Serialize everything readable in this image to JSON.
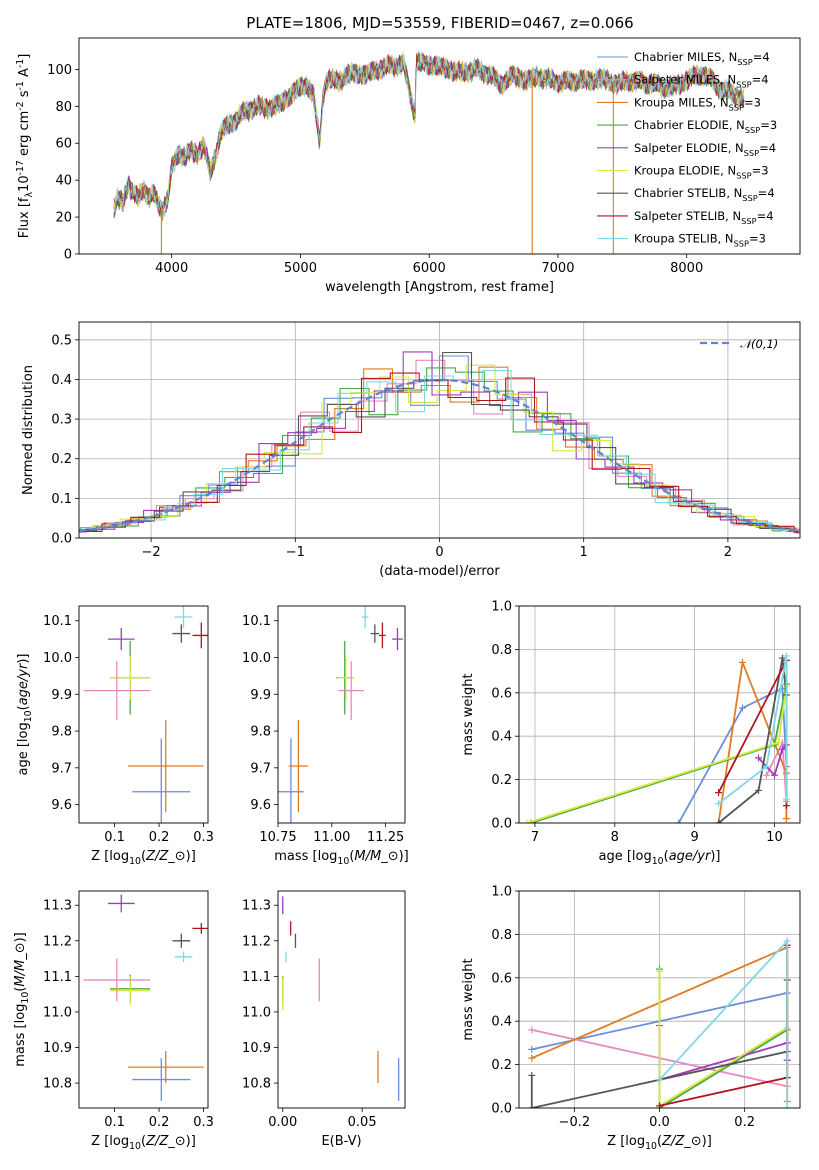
{
  "title": "PLATE=1806, MJD=53559, FIBERID=0467, z=0.066",
  "legend_top": [
    {
      "name": "Chabrier MILES, N$_{SSP}$=4",
      "color": "#6a8fd8"
    },
    {
      "name": "Salpeter MILES, N$_{SSP}$=4",
      "color": "#e78ac3"
    },
    {
      "name": "Kroupa MILES, N$_{SSP}$=3",
      "color": "#e07b22"
    },
    {
      "name": "Chabrier ELODIE, N$_{SSP}$=3",
      "color": "#4aa845"
    },
    {
      "name": "Salpeter ELODIE, N$_{SSP}$=4",
      "color": "#a23bbd"
    },
    {
      "name": "Kroupa ELODIE, N$_{SSP}$=3",
      "color": "#d8e840"
    },
    {
      "name": "Chabrier STELIB, N$_{SSP}$=4",
      "color": "#555555"
    },
    {
      "name": "Salpeter STELIB, N$_{SSP}$=4",
      "color": "#b0161e"
    },
    {
      "name": "Kroupa STELIB, N$_{SSP}$=3",
      "color": "#7fd8e6"
    }
  ],
  "legend_hist": "𝒩(0,1)",
  "chart_data": [
    {
      "type": "line",
      "id": "spectrum",
      "xlabel": "wavelength [Angstrom, rest frame]",
      "ylabel": "Flux [f$_λ$10$^{-17}$ erg cm$^{-2}$ s$^{-1}$ A$^{-1}$]",
      "xlim": [
        3280,
        8880
      ],
      "ylim": [
        0,
        117
      ],
      "xticks": [
        4000,
        5000,
        6000,
        7000,
        8000
      ],
      "yticks": [
        0,
        20,
        40,
        60,
        80,
        100
      ],
      "spectrum_x": [
        3550,
        3580,
        3620,
        3660,
        3700,
        3740,
        3780,
        3820,
        3860,
        3900,
        3930,
        3970,
        4000,
        4050,
        4100,
        4150,
        4200,
        4250,
        4300,
        4340,
        4380,
        4450,
        4550,
        4650,
        4750,
        4860,
        4950,
        5050,
        5100,
        5150,
        5175,
        5200,
        5300,
        5400,
        5500,
        5600,
        5700,
        5800,
        5890,
        5900,
        5950,
        6050,
        6150,
        6250,
        6350,
        6450,
        6563,
        6650,
        6750,
        6850,
        6950,
        7050,
        7150,
        7250,
        7350,
        7450,
        7550,
        7650,
        7750,
        7850,
        7950,
        8050,
        8150,
        8250,
        8350,
        8450
      ],
      "spectrum_y": [
        24,
        30,
        28,
        38,
        33,
        30,
        36,
        31,
        32,
        27,
        24,
        30,
        46,
        55,
        52,
        56,
        54,
        59,
        44,
        53,
        66,
        70,
        76,
        80,
        79,
        82,
        88,
        92,
        86,
        60,
        86,
        94,
        94,
        98,
        97,
        100,
        102,
        103,
        75,
        104,
        103,
        102,
        100,
        98,
        100,
        98,
        92,
        97,
        94,
        96,
        94,
        93,
        94,
        94,
        95,
        92,
        94,
        93,
        92,
        90,
        92,
        96,
        97,
        90,
        87,
        84
      ],
      "drops": [
        {
          "x": 3920,
          "color": "#e07b22"
        },
        {
          "x": 6800,
          "color": "#e07b22"
        },
        {
          "x": 7430,
          "color": "#e07b22"
        }
      ]
    },
    {
      "type": "histogram",
      "id": "residuals",
      "xlabel": "(data-model)/error",
      "ylabel": "Normed distribution",
      "xlim": [
        -2.5,
        2.5
      ],
      "ylim": [
        0,
        0.545
      ],
      "xticks": [
        -2,
        -1,
        0,
        1,
        2
      ],
      "yticks": [
        0.0,
        0.1,
        0.2,
        0.3,
        0.4,
        0.5
      ],
      "bin_width": 0.2,
      "gaussian": {
        "mean": 0,
        "sigma": 1
      }
    },
    {
      "type": "scatter",
      "id": "age-vs-Z",
      "xlabel": "Z [log$_{10}$($Z/Z_⊙$)]",
      "ylabel": "age  [log$_{10}$($age/yr$)]",
      "xlim": [
        0.02,
        0.31
      ],
      "ylim": [
        9.55,
        10.14
      ],
      "xticks": [
        0.1,
        0.2,
        0.3
      ],
      "yticks": [
        9.6,
        9.7,
        9.8,
        9.9,
        10.0,
        10.1
      ],
      "points": [
        {
          "x": 0.205,
          "y": 9.635,
          "xerr": 0.065,
          "yerr": 0.145,
          "s": 0
        },
        {
          "x": 0.215,
          "y": 9.705,
          "xerr": 0.085,
          "yerr": 0.125,
          "s": 2
        },
        {
          "x": 0.135,
          "y": 9.945,
          "xerr": 0.045,
          "yerr": 0.1,
          "s": 3
        },
        {
          "x": 0.135,
          "y": 9.945,
          "xerr": 0.045,
          "yerr": 0.06,
          "s": 5
        },
        {
          "x": 0.115,
          "y": 10.05,
          "xerr": 0.03,
          "yerr": 0.03,
          "s": 4
        },
        {
          "x": 0.255,
          "y": 10.11,
          "xerr": 0.02,
          "yerr": 0.03,
          "s": 8
        },
        {
          "x": 0.25,
          "y": 10.065,
          "xerr": 0.02,
          "yerr": 0.025,
          "s": 6
        },
        {
          "x": 0.295,
          "y": 10.06,
          "xerr": 0.02,
          "yerr": 0.035,
          "s": 7
        },
        {
          "x": 0.105,
          "y": 9.91,
          "xerr": 0.075,
          "yerr": 0.08,
          "s": 1
        }
      ]
    },
    {
      "type": "scatter",
      "id": "age-vs-mass",
      "xlabel": "mass [log$_{10}$($M/M_⊙$)]",
      "xlim": [
        10.75,
        11.34
      ],
      "ylim": [
        9.55,
        10.14
      ],
      "xticks": [
        10.75,
        11.0,
        11.25
      ],
      "xticklabels": [
        "10.75",
        "11.00",
        "11.25"
      ],
      "yticks": [
        9.6,
        9.7,
        9.8,
        9.9,
        10.0,
        10.1
      ],
      "points": [
        {
          "x": 10.81,
          "y": 9.635,
          "xerr": 0.06,
          "yerr": 0.145,
          "s": 0
        },
        {
          "x": 10.845,
          "y": 9.705,
          "xerr": 0.045,
          "yerr": 0.125,
          "s": 2
        },
        {
          "x": 11.06,
          "y": 9.945,
          "xerr": 0.04,
          "yerr": 0.1,
          "s": 3
        },
        {
          "x": 11.065,
          "y": 9.945,
          "xerr": 0.04,
          "yerr": 0.06,
          "s": 5
        },
        {
          "x": 11.305,
          "y": 10.05,
          "xerr": 0.025,
          "yerr": 0.03,
          "s": 4
        },
        {
          "x": 11.155,
          "y": 10.11,
          "xerr": 0.015,
          "yerr": 0.03,
          "s": 8
        },
        {
          "x": 11.2,
          "y": 10.065,
          "xerr": 0.02,
          "yerr": 0.025,
          "s": 6
        },
        {
          "x": 11.235,
          "y": 10.06,
          "xerr": 0.015,
          "yerr": 0.035,
          "s": 7
        },
        {
          "x": 11.09,
          "y": 9.91,
          "xerr": 0.06,
          "yerr": 0.08,
          "s": 1
        }
      ]
    },
    {
      "type": "line",
      "id": "weight-vs-age",
      "xlabel": "age  [log$_{10}$($age/yr$)]",
      "ylabel": "mass weight",
      "xlim": [
        6.8,
        10.32
      ],
      "ylim": [
        0,
        1.0
      ],
      "xticks": [
        7,
        8,
        9,
        10
      ],
      "yticks": [
        0.0,
        0.2,
        0.4,
        0.6,
        0.8,
        1.0
      ],
      "series": [
        {
          "s": 0,
          "x": [
            8.8,
            9.6,
            10.1,
            10.15
          ],
          "y": [
            0.0,
            0.53,
            0.62,
            0.26
          ]
        },
        {
          "s": 1,
          "x": [
            9.9,
            10.1,
            10.15
          ],
          "y": [
            0.22,
            0.37,
            0.1
          ]
        },
        {
          "s": 2,
          "x": [
            9.3,
            9.6,
            10.15,
            10.15
          ],
          "y": [
            0.0,
            0.74,
            0.23,
            0.02
          ]
        },
        {
          "s": 3,
          "x": [
            6.95,
            10.0,
            10.15
          ],
          "y": [
            0.0,
            0.36,
            0.64
          ]
        },
        {
          "s": 4,
          "x": [
            9.8,
            10.0,
            10.1,
            10.15
          ],
          "y": [
            0.3,
            0.22,
            0.34,
            0.36
          ]
        },
        {
          "s": 5,
          "x": [
            6.9,
            10.05,
            10.15
          ],
          "y": [
            0.0,
            0.37,
            0.63
          ]
        },
        {
          "s": 6,
          "x": [
            9.3,
            9.8,
            10.1,
            10.15
          ],
          "y": [
            0.0,
            0.15,
            0.76,
            0.59
          ]
        },
        {
          "s": 7,
          "x": [
            9.3,
            10.15,
            10.15
          ],
          "y": [
            0.14,
            0.75,
            0.08
          ]
        },
        {
          "s": 8,
          "x": [
            9.3,
            9.9,
            10.15,
            10.15
          ],
          "y": [
            0.09,
            0.26,
            0.77,
            0.11
          ]
        }
      ]
    },
    {
      "type": "scatter",
      "id": "mass-vs-Z",
      "xlabel": "Z [log$_{10}$($Z/Z_⊙$)]",
      "ylabel": "mass [log$_{10}$($M/M_⊙$)]",
      "xlim": [
        0.02,
        0.31
      ],
      "ylim": [
        10.73,
        11.34
      ],
      "xticks": [
        0.1,
        0.2,
        0.3
      ],
      "yticks": [
        10.8,
        10.9,
        11.0,
        11.1,
        11.2,
        11.3
      ],
      "points": [
        {
          "x": 0.205,
          "y": 10.81,
          "xerr": 0.065,
          "yerr": 0.06,
          "s": 0
        },
        {
          "x": 0.215,
          "y": 10.845,
          "xerr": 0.085,
          "yerr": 0.045,
          "s": 2
        },
        {
          "x": 0.135,
          "y": 11.065,
          "xerr": 0.045,
          "yerr": 0.04,
          "s": 3
        },
        {
          "x": 0.135,
          "y": 11.06,
          "xerr": 0.045,
          "yerr": 0.04,
          "s": 5
        },
        {
          "x": 0.115,
          "y": 11.305,
          "xerr": 0.03,
          "yerr": 0.025,
          "s": 4
        },
        {
          "x": 0.255,
          "y": 11.155,
          "xerr": 0.02,
          "yerr": 0.015,
          "s": 8
        },
        {
          "x": 0.25,
          "y": 11.2,
          "xerr": 0.02,
          "yerr": 0.02,
          "s": 6
        },
        {
          "x": 0.295,
          "y": 11.235,
          "xerr": 0.02,
          "yerr": 0.015,
          "s": 7
        },
        {
          "x": 0.105,
          "y": 11.09,
          "xerr": 0.075,
          "yerr": 0.06,
          "s": 1
        }
      ]
    },
    {
      "type": "scatter",
      "id": "mass-vs-EBV",
      "xlabel": "E(B-V)",
      "xlim": [
        -0.003,
        0.077
      ],
      "ylim": [
        10.73,
        11.34
      ],
      "xticks": [
        0.0,
        0.05
      ],
      "xticklabels": [
        "0.00",
        "0.05"
      ],
      "yticks": [
        10.8,
        10.9,
        11.0,
        11.1,
        11.2,
        11.3
      ],
      "points": [
        {
          "x": 0.073,
          "y": 10.81,
          "xerr": 0,
          "yerr": 0.06,
          "s": 0
        },
        {
          "x": 0.06,
          "y": 10.845,
          "xerr": 0,
          "yerr": 0.045,
          "s": 2
        },
        {
          "x": 0.023,
          "y": 11.09,
          "xerr": 0,
          "yerr": 0.06,
          "s": 1
        },
        {
          "x": 0.0,
          "y": 11.06,
          "xerr": 0,
          "yerr": 0.04,
          "s": 3
        },
        {
          "x": 0.0,
          "y": 11.05,
          "xerr": 0,
          "yerr": 0.045,
          "s": 5
        },
        {
          "x": 0.0,
          "y": 11.3,
          "xerr": 0,
          "yerr": 0.025,
          "s": 4
        },
        {
          "x": 0.002,
          "y": 11.155,
          "xerr": 0,
          "yerr": 0.015,
          "s": 8
        },
        {
          "x": 0.008,
          "y": 11.2,
          "xerr": 0,
          "yerr": 0.02,
          "s": 6
        },
        {
          "x": 0.005,
          "y": 11.235,
          "xerr": 0,
          "yerr": 0.02,
          "s": 7
        }
      ]
    },
    {
      "type": "line",
      "id": "weight-vs-Z",
      "xlabel": "Z [log$_{10}$($Z/Z_⊙$)]",
      "ylabel": "mass weight",
      "xlim": [
        -0.33,
        0.33
      ],
      "ylim": [
        0,
        1.0
      ],
      "xticks": [
        -0.2,
        0.0,
        0.2
      ],
      "xticklabels": [
        "−0.2",
        "0.0",
        "0.2"
      ],
      "yticks": [
        0.0,
        0.2,
        0.4,
        0.6,
        0.8,
        1.0
      ],
      "series": [
        {
          "s": 0,
          "x": [
            -0.3,
            0.0,
            0.3
          ],
          "y": [
            0.27,
            0.4,
            0.53
          ]
        },
        {
          "s": 1,
          "x": [
            -0.3,
            0.3
          ],
          "y": [
            0.36,
            0.1
          ]
        },
        {
          "s": 2,
          "x": [
            -0.3,
            0.3,
            0.3
          ],
          "y": [
            0.23,
            0.74,
            0.03
          ]
        },
        {
          "s": 3,
          "x": [
            0.0,
            0.0,
            0.3
          ],
          "y": [
            0.64,
            0.0,
            0.36
          ]
        },
        {
          "s": 4,
          "x": [
            0.0,
            0.0,
            0.3,
            0.3
          ],
          "y": [
            0.38,
            0.13,
            0.3,
            0.22
          ]
        },
        {
          "s": 5,
          "x": [
            0.0,
            0.0,
            0.3
          ],
          "y": [
            0.63,
            0.01,
            0.37
          ]
        },
        {
          "s": 6,
          "x": [
            -0.3,
            -0.3,
            0.3,
            0.3
          ],
          "y": [
            0.15,
            0.0,
            0.26,
            0.59
          ]
        },
        {
          "s": 7,
          "x": [
            0.0,
            0.3,
            0.3
          ],
          "y": [
            0.01,
            0.14,
            0.75
          ]
        },
        {
          "s": 8,
          "x": [
            0.0,
            0.3,
            0.3
          ],
          "y": [
            0.13,
            0.77,
            0.0
          ]
        }
      ]
    }
  ]
}
